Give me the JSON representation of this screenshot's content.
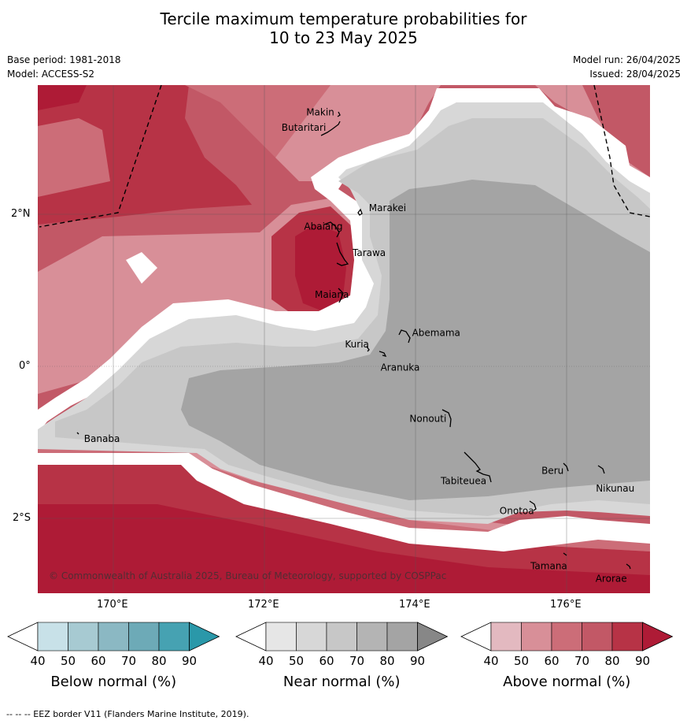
{
  "title_line1": "Tercile maximum temperature probabilities for",
  "title_line2": "10 to 23 May 2025",
  "base_period": "Base period: 1981-2018",
  "model": "Model: ACCESS-S2",
  "model_run": "Model run: 26/04/2025",
  "issued": "Issued: 28/04/2025",
  "copyright": "© Commonwealth of Australia 2025, Bureau of Meteorology, supported by COSPPac",
  "lat_ticks": [
    "2°N",
    "0°",
    "2°S"
  ],
  "lon_ticks": [
    "170°E",
    "172°E",
    "174°E",
    "176°E"
  ],
  "places": [
    {
      "name": "Makin",
      "lon": 172.95,
      "lat": 3.3
    },
    {
      "name": "Butaritari",
      "lon": 172.8,
      "lat": 3.1
    },
    {
      "name": "Marakei",
      "lon": 173.3,
      "lat": 2.0
    },
    {
      "name": "Abaiang",
      "lon": 172.9,
      "lat": 1.8
    },
    {
      "name": "Tarawa",
      "lon": 173.0,
      "lat": 1.4
    },
    {
      "name": "Maiana",
      "lon": 173.0,
      "lat": 0.9
    },
    {
      "name": "Abemama",
      "lon": 173.85,
      "lat": 0.4
    },
    {
      "name": "Kuria",
      "lon": 173.4,
      "lat": 0.25
    },
    {
      "name": "Aranuka",
      "lon": 173.6,
      "lat": 0.15
    },
    {
      "name": "Nonouti",
      "lon": 174.4,
      "lat": -0.65
    },
    {
      "name": "Banaba",
      "lon": 169.55,
      "lat": -0.87
    },
    {
      "name": "Tabiteuea",
      "lon": 174.75,
      "lat": -1.3
    },
    {
      "name": "Beru",
      "lon": 175.98,
      "lat": -1.33
    },
    {
      "name": "Nikunau",
      "lon": 176.45,
      "lat": -1.38
    },
    {
      "name": "Onotoa",
      "lon": 175.55,
      "lat": -1.8
    },
    {
      "name": "Tamana",
      "lon": 175.98,
      "lat": -2.5
    },
    {
      "name": "Arorae",
      "lon": 176.82,
      "lat": -2.65
    }
  ],
  "colorbars": [
    {
      "name": "below",
      "label": "Below normal (%)",
      "ticks": [
        "40",
        "50",
        "60",
        "70",
        "80",
        "90"
      ],
      "colors": [
        "#ffffff",
        "#c8e1e8",
        "#a7cad2",
        "#8bb8c3",
        "#6daab7",
        "#46a2b2",
        "#2a98a9"
      ]
    },
    {
      "name": "near",
      "label": "Near normal (%)",
      "ticks": [
        "40",
        "50",
        "60",
        "70",
        "80",
        "90"
      ],
      "colors": [
        "#ffffff",
        "#e6e6e6",
        "#d7d7d7",
        "#c7c7c7",
        "#b4b4b4",
        "#a4a4a4",
        "#878787"
      ]
    },
    {
      "name": "above",
      "label": "Above normal (%)",
      "ticks": [
        "40",
        "50",
        "60",
        "70",
        "80",
        "90"
      ],
      "colors": [
        "#ffffff",
        "#e3b9c0",
        "#d88f98",
        "#cc6d78",
        "#c25866",
        "#b73346",
        "#ae1b36"
      ]
    }
  ],
  "eez_footnote": "-- -- -- EEZ border V11 (Flanders Marine Institute, 2019)."
}
